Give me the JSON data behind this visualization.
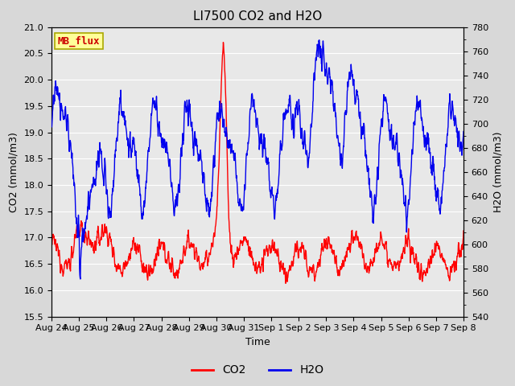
{
  "title": "LI7500 CO2 and H2O",
  "xlabel": "Time",
  "ylabel_left": "CO2 (mmol/m3)",
  "ylabel_right": "H2O (mmol/m3)",
  "ylim_left": [
    15.5,
    21.0
  ],
  "ylim_right": [
    540,
    780
  ],
  "yticks_left": [
    15.5,
    16.0,
    16.5,
    17.0,
    17.5,
    18.0,
    18.5,
    19.0,
    19.5,
    20.0,
    20.5,
    21.0
  ],
  "yticks_right": [
    540,
    560,
    580,
    600,
    620,
    640,
    660,
    680,
    700,
    720,
    740,
    760,
    780
  ],
  "xtick_labels": [
    "Aug 24",
    "Aug 25",
    "Aug 26",
    "Aug 27",
    "Aug 28",
    "Aug 29",
    "Aug 30",
    "Aug 31",
    "Sep 1",
    "Sep 2",
    "Sep 3",
    "Sep 4",
    "Sep 5",
    "Sep 6",
    "Sep 7",
    "Sep 8"
  ],
  "fig_bg_color": "#d8d8d8",
  "plot_bg": "#e8e8e8",
  "annotation_text": "MB_flux",
  "annotation_bg": "#ffff99",
  "annotation_border": "#aaa800",
  "annotation_color": "#cc0000",
  "co2_color": "#ff0000",
  "h2o_color": "#0000ee",
  "legend_co2": "CO2",
  "legend_h2o": "H2O",
  "grid_color": "#ffffff",
  "linewidth": 1.0
}
